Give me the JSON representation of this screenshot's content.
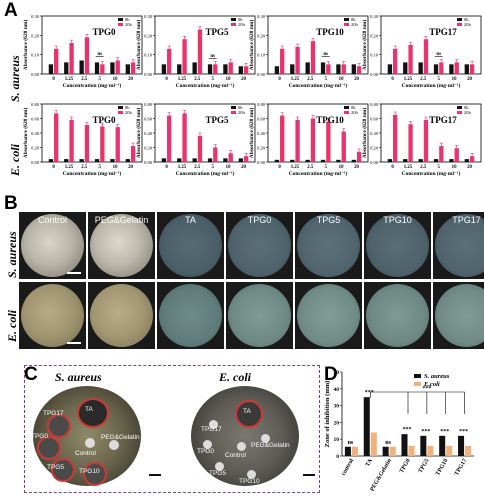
{
  "panel_labels": {
    "a": "A",
    "b": "B",
    "c": "C",
    "d": "D"
  },
  "panel_a": {
    "ylabel": "Absorbance (620 nm)",
    "xlabel": "Concentration (mg·ml⁻¹)",
    "legend": [
      "0h",
      "20h"
    ],
    "row_labels": [
      "S. aureus",
      "E. coli"
    ],
    "sig": "ns"
  },
  "panel_b": {
    "row_labels": [
      "S. aureus",
      "E. coli"
    ],
    "dishes": [
      "Control",
      "PEG&Gelatin",
      "TA",
      "TPG0",
      "TPG5",
      "TPG10",
      "TPG17"
    ]
  },
  "panel_c": {
    "left_title": "S. aureus",
    "right_title": "E. coli",
    "left_labels": [
      "TA",
      "TPG17",
      "TPG0",
      "PEG&Gelatin",
      "Control",
      "TPG5",
      "TPG10"
    ],
    "right_labels": [
      "TA",
      "TPG17",
      "TPG0",
      "PEG&Gelatin",
      "Control",
      "TPG5",
      "TPG10"
    ]
  },
  "chart_data": [
    {
      "type": "bar",
      "title": "TPG0",
      "row": "S. aureus",
      "categories": [
        "0",
        "1.25",
        "2.5",
        "5",
        "10",
        "20"
      ],
      "series": [
        {
          "name": "0h",
          "values": [
            0.05,
            0.06,
            0.07,
            0.06,
            0.06,
            0.05
          ]
        },
        {
          "name": "20h",
          "values": [
            0.13,
            0.16,
            0.19,
            0.05,
            0.07,
            0.06
          ]
        }
      ],
      "ylim": [
        0,
        0.3
      ],
      "yticks": [
        "0.00",
        "0.10",
        "0.20",
        "0.30"
      ]
    },
    {
      "type": "bar",
      "title": "TPG5",
      "row": "S. aureus",
      "categories": [
        "0",
        "1.25",
        "2.5",
        "5",
        "10",
        "20"
      ],
      "series": [
        {
          "name": "0h",
          "values": [
            0.05,
            0.05,
            0.06,
            0.05,
            0.05,
            0.04
          ]
        },
        {
          "name": "20h",
          "values": [
            0.13,
            0.18,
            0.23,
            0.05,
            0.06,
            0.04
          ]
        }
      ],
      "ylim": [
        0,
        0.3
      ],
      "yticks": [
        "0.00",
        "0.10",
        "0.20",
        "0.30"
      ]
    },
    {
      "type": "bar",
      "title": "TPG10",
      "row": "S. aureus",
      "categories": [
        "0",
        "1.25",
        "2.5",
        "5",
        "10",
        "20"
      ],
      "series": [
        {
          "name": "0h",
          "values": [
            0.04,
            0.05,
            0.06,
            0.06,
            0.05,
            0.05
          ]
        },
        {
          "name": "20h",
          "values": [
            0.13,
            0.14,
            0.17,
            0.05,
            0.05,
            0.04
          ]
        }
      ],
      "ylim": [
        0,
        0.3
      ],
      "yticks": [
        "0.00",
        "0.10",
        "0.20",
        "0.30"
      ]
    },
    {
      "type": "bar",
      "title": "TPG17",
      "row": "S. aureus",
      "categories": [
        "0",
        "1.25",
        "2.5",
        "5",
        "10",
        "20"
      ],
      "series": [
        {
          "name": "0h",
          "values": [
            0.05,
            0.06,
            0.06,
            0.05,
            0.05,
            0.05
          ]
        },
        {
          "name": "20h",
          "values": [
            0.13,
            0.15,
            0.18,
            0.06,
            0.06,
            0.05
          ]
        }
      ],
      "ylim": [
        0,
        0.3
      ],
      "yticks": [
        "0.00",
        "0.10",
        "0.20",
        "0.30"
      ]
    },
    {
      "type": "bar",
      "title": "TPG0",
      "row": "E. coli",
      "categories": [
        "0",
        "1.25",
        "2.5",
        "5",
        "10",
        "20"
      ],
      "series": [
        {
          "name": "0h",
          "values": [
            0.04,
            0.04,
            0.04,
            0.04,
            0.04,
            0.04
          ]
        },
        {
          "name": "20h",
          "values": [
            0.67,
            0.58,
            0.51,
            0.49,
            0.48,
            0.22
          ]
        }
      ],
      "ylim": [
        0,
        0.8
      ],
      "yticks": [
        "0.00",
        "0.20",
        "0.40",
        "0.60",
        "0.80"
      ]
    },
    {
      "type": "bar",
      "title": "TPG5",
      "row": "E. coli",
      "categories": [
        "0",
        "1.25",
        "2.5",
        "5",
        "10",
        "20"
      ],
      "series": [
        {
          "name": "0h",
          "values": [
            0.05,
            0.05,
            0.05,
            0.05,
            0.05,
            0.05
          ]
        },
        {
          "name": "20h",
          "values": [
            0.64,
            0.67,
            0.36,
            0.2,
            0.12,
            0.08
          ]
        }
      ],
      "ylim": [
        0,
        0.8
      ],
      "yticks": [
        "0.00",
        "0.20",
        "0.40",
        "0.60",
        "0.80"
      ]
    },
    {
      "type": "bar",
      "title": "TPG10",
      "row": "E. coli",
      "categories": [
        "0",
        "1.25",
        "2.5",
        "5",
        "10",
        "20"
      ],
      "series": [
        {
          "name": "0h",
          "values": [
            0.03,
            0.03,
            0.03,
            0.03,
            0.03,
            0.03
          ]
        },
        {
          "name": "20h",
          "values": [
            0.64,
            0.58,
            0.6,
            0.56,
            0.42,
            0.14
          ]
        }
      ],
      "ylim": [
        0,
        0.8
      ],
      "yticks": [
        "0.00",
        "0.20",
        "0.40",
        "0.60",
        "0.80"
      ]
    },
    {
      "type": "bar",
      "title": "TPG17",
      "row": "E. coli",
      "categories": [
        "0",
        "1.25",
        "2.5",
        "5",
        "10",
        "20"
      ],
      "series": [
        {
          "name": "0h",
          "values": [
            0.04,
            0.04,
            0.04,
            0.04,
            0.04,
            0.04
          ]
        },
        {
          "name": "20h",
          "values": [
            0.65,
            0.52,
            0.58,
            0.22,
            0.19,
            0.08
          ]
        }
      ],
      "ylim": [
        0,
        0.8
      ],
      "yticks": [
        "0.00",
        "0.20",
        "0.40",
        "0.60",
        "0.80"
      ]
    },
    {
      "type": "bar",
      "title": "",
      "ylabel": "Zone of inhibition (mm)",
      "categories": [
        "control",
        "TA",
        "PEG&Gelatin",
        "TPG0",
        "TPG5",
        "TPG10",
        "TPG17"
      ],
      "series": [
        {
          "name": "S. aureus",
          "values": [
            5.5,
            35,
            5.5,
            13,
            12,
            12,
            12
          ]
        },
        {
          "name": "E.coli",
          "values": [
            5.5,
            14,
            5.5,
            6,
            6,
            6,
            6
          ]
        }
      ],
      "ylim": [
        0,
        50
      ],
      "yticks": [
        "0",
        "10",
        "20",
        "30",
        "40",
        "50"
      ],
      "annotations": [
        "ns",
        "***",
        "ns",
        "***",
        "***",
        "***",
        "***",
        "***"
      ]
    }
  ],
  "colors": {
    "h0": "#111111",
    "h20": "#e8336d",
    "sa": "#111111",
    "ec": "#f0b27a",
    "frame": "#7b3fa0"
  }
}
